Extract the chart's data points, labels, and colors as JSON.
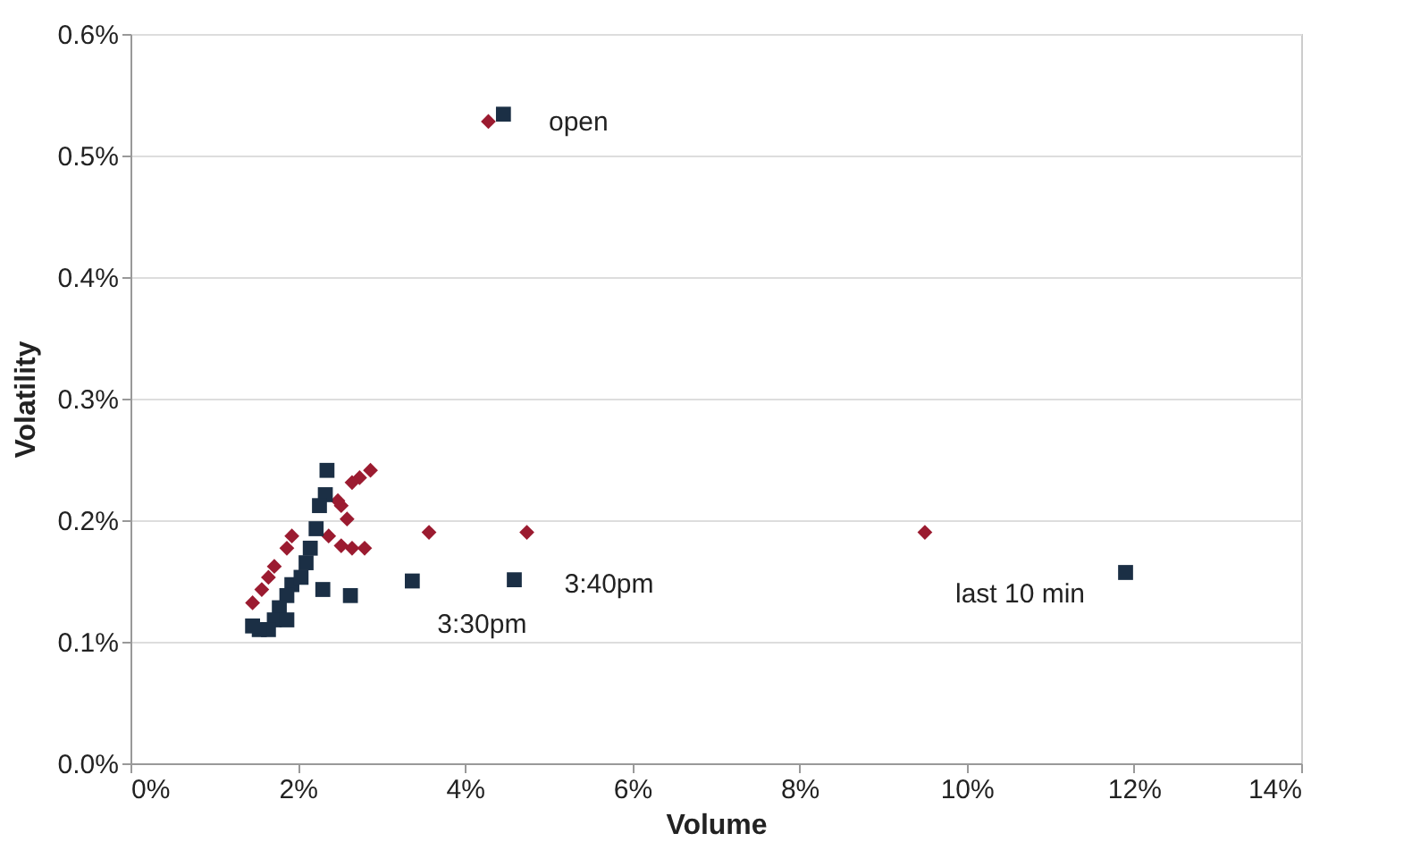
{
  "chart_data": {
    "type": "scatter",
    "xlabel": "Volume",
    "ylabel": "Volatility",
    "xlim": [
      0,
      14
    ],
    "ylim": [
      0,
      0.6
    ],
    "xticks": [
      {
        "value": 0,
        "label": "0%"
      },
      {
        "value": 2,
        "label": "2%"
      },
      {
        "value": 4,
        "label": "4%"
      },
      {
        "value": 6,
        "label": "6%"
      },
      {
        "value": 8,
        "label": "8%"
      },
      {
        "value": 10,
        "label": "10%"
      },
      {
        "value": 12,
        "label": "12%"
      },
      {
        "value": 14,
        "label": "14%"
      }
    ],
    "yticks": [
      {
        "value": 0,
        "label": "0.0%"
      },
      {
        "value": 0.1,
        "label": "0.1%"
      },
      {
        "value": 0.2,
        "label": "0.2%"
      },
      {
        "value": 0.3,
        "label": "0.3%"
      },
      {
        "value": 0.4,
        "label": "0.4%"
      },
      {
        "value": 0.5,
        "label": "0.5%"
      },
      {
        "value": 0.6,
        "label": "0.6%"
      }
    ],
    "grid": "y",
    "legend": false,
    "series": [
      {
        "color": "#9b1b30",
        "marker": "diamond",
        "x": [
          4.28,
          3.57,
          4.74,
          9.5,
          2.87,
          2.74,
          2.65,
          2.59,
          2.52,
          2.48,
          2.8,
          2.65,
          2.52,
          2.37,
          1.93,
          1.87,
          1.72,
          1.65,
          1.57,
          1.46
        ],
        "values": [
          0.528,
          0.19,
          0.19,
          0.19,
          0.241,
          0.235,
          0.231,
          0.201,
          0.212,
          0.216,
          0.177,
          0.177,
          0.179,
          0.187,
          0.187,
          0.177,
          0.162,
          0.153,
          0.143,
          0.132
        ]
      },
      {
        "color": "#1b2f45",
        "marker": "square",
        "x": [
          4.46,
          3.37,
          4.59,
          11.9,
          2.35,
          2.33,
          2.26,
          2.22,
          2.15,
          2.09,
          2.0,
          1.93,
          1.87,
          1.78,
          1.72,
          1.65,
          1.54,
          1.46,
          1.87,
          2.3,
          2.63,
          2.1,
          2.04
        ],
        "values": [
          0.534,
          0.15,
          0.151,
          0.157,
          0.241,
          0.221,
          0.212,
          0.193,
          0.177,
          null,
          null,
          0.147,
          0.138,
          0.128,
          0.118,
          0.11,
          0.11,
          0.113,
          0.118,
          0.143,
          0.138,
          0.165,
          0.153
        ]
      }
    ],
    "annotations": [
      {
        "text": "open",
        "x": 4.46,
        "y": 0.534
      },
      {
        "text": "3:30pm",
        "x": 3.37,
        "y": 0.15
      },
      {
        "text": "3:40pm",
        "x": 4.59,
        "y": 0.151
      },
      {
        "text": "last 10 min",
        "x": 11.9,
        "y": 0.157
      }
    ]
  }
}
